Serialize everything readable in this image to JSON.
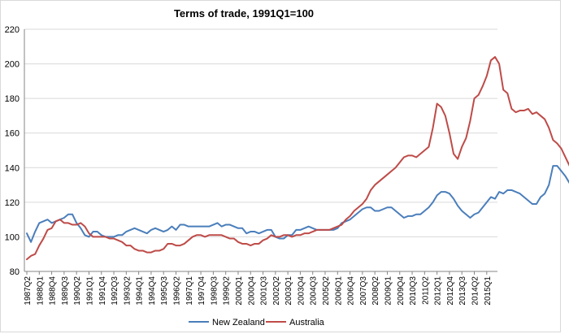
{
  "chart_data": {
    "type": "line",
    "title": "Terms of trade, 1991Q1=100",
    "xlabel": "",
    "ylabel": "",
    "ylim": [
      80,
      220
    ],
    "yticks": [
      80,
      100,
      120,
      140,
      160,
      180,
      200,
      220
    ],
    "grid": true,
    "legend_position": "bottom",
    "x_start": "1987Q2",
    "x_end": "2015Q3",
    "x_tick_labels": [
      "1987Q2",
      "1988Q1",
      "1988Q4",
      "1989Q3",
      "1990Q2",
      "1991Q1",
      "1991Q4",
      "1992Q3",
      "1993Q2",
      "1994Q1",
      "1994Q4",
      "1995Q3",
      "1996Q2",
      "1997Q1",
      "1997Q4",
      "1998Q3",
      "1999Q2",
      "2000Q1",
      "2000Q4",
      "2001Q3",
      "2002Q2",
      "2003Q1",
      "2003Q4",
      "2004Q3",
      "2005Q2",
      "2006Q1",
      "2006Q4",
      "2007Q3",
      "2008Q2",
      "2009Q1",
      "2009Q4",
      "2010Q3",
      "2011Q2",
      "2012Q1",
      "2012Q4",
      "2013Q3",
      "2014Q2",
      "2015Q1"
    ],
    "series": [
      {
        "name": "New Zealand",
        "color": "#4a7ebb",
        "values": [
          102,
          97,
          103,
          108,
          109,
          110,
          108,
          109,
          110,
          111,
          113,
          113,
          108,
          105,
          101,
          100,
          103,
          103,
          101,
          100,
          100,
          100,
          101,
          101,
          103,
          104,
          105,
          104,
          103,
          102,
          104,
          105,
          104,
          103,
          104,
          106,
          104,
          107,
          107,
          106,
          106,
          106,
          106,
          106,
          106,
          107,
          108,
          106,
          107,
          107,
          106,
          105,
          105,
          102,
          103,
          103,
          102,
          103,
          104,
          104,
          100,
          99,
          99,
          101,
          101,
          104,
          104,
          105,
          106,
          105,
          104,
          104,
          104,
          104,
          104,
          105,
          108,
          109,
          110,
          112,
          114,
          116,
          117,
          117,
          115,
          115,
          116,
          117,
          117,
          115,
          113,
          111,
          112,
          112,
          113,
          113,
          115,
          117,
          120,
          124,
          126,
          126,
          125,
          122,
          118,
          115,
          113,
          111,
          113,
          114,
          117,
          120,
          123,
          122,
          126,
          125,
          127,
          127,
          126,
          125,
          123,
          121,
          119,
          119,
          123,
          125,
          130,
          141,
          141,
          138,
          135,
          131,
          133,
          133,
          128
        ]
      },
      {
        "name": "Australia",
        "color": "#be4b48",
        "values": [
          87,
          89,
          90,
          95,
          99,
          104,
          105,
          109,
          110,
          108,
          108,
          107,
          107,
          108,
          106,
          102,
          100,
          100,
          100,
          100,
          99,
          99,
          98,
          97,
          95,
          95,
          93,
          92,
          92,
          91,
          91,
          92,
          92,
          93,
          96,
          96,
          95,
          95,
          96,
          98,
          100,
          101,
          101,
          100,
          101,
          101,
          101,
          101,
          100,
          99,
          99,
          97,
          96,
          96,
          95,
          96,
          96,
          98,
          99,
          101,
          100,
          100,
          101,
          101,
          100,
          101,
          101,
          102,
          102,
          103,
          104,
          104,
          104,
          104,
          105,
          106,
          107,
          110,
          112,
          115,
          117,
          119,
          122,
          127,
          130,
          132,
          134,
          136,
          138,
          140,
          143,
          146,
          147,
          147,
          146,
          148,
          150,
          152,
          163,
          177,
          175,
          170,
          160,
          148,
          145,
          152,
          157,
          167,
          180,
          182,
          187,
          193,
          202,
          204,
          200,
          185,
          183,
          174,
          172,
          173,
          173,
          174,
          171,
          172,
          170,
          168,
          163,
          156,
          154,
          151,
          146,
          141,
          139
        ]
      }
    ]
  }
}
